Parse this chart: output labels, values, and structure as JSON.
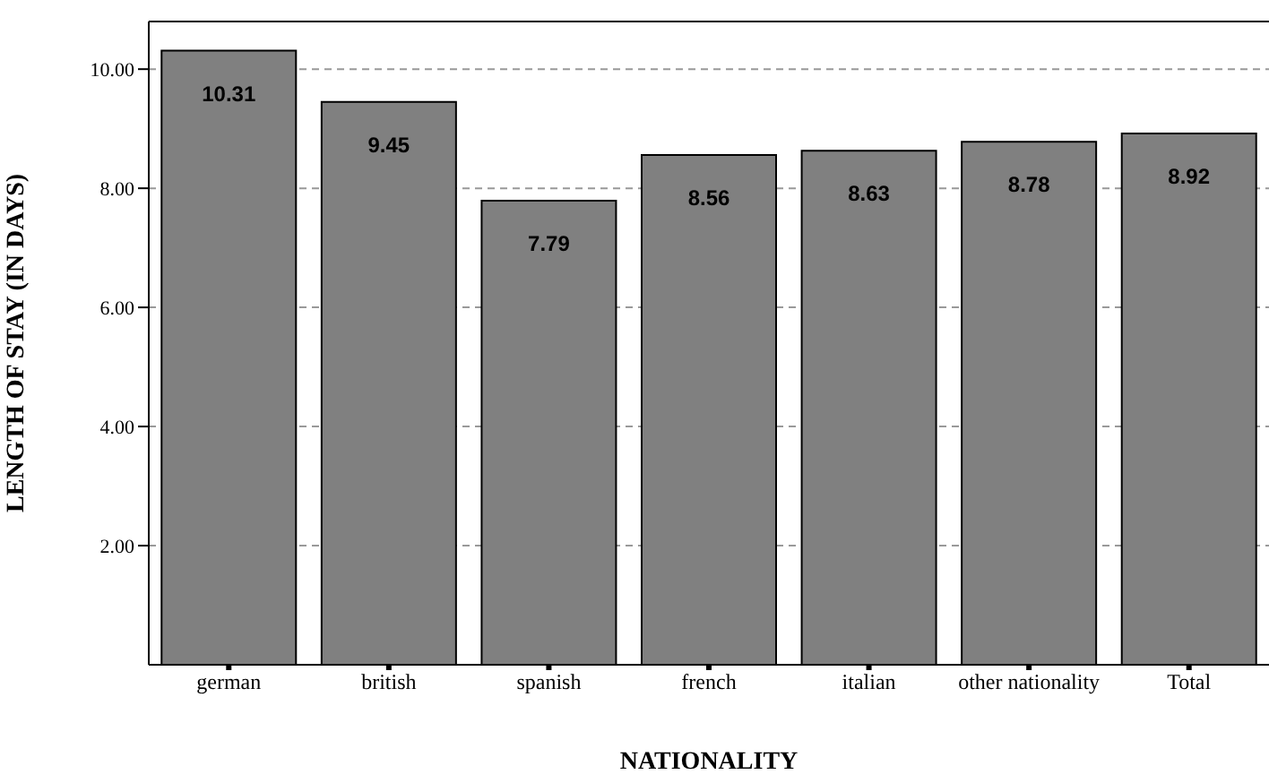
{
  "chart_data": {
    "type": "bar",
    "xlabel": "NATIONALITY",
    "ylabel": "LENGTH OF STAY (IN DAYS)",
    "categories": [
      "german",
      "british",
      "spanish",
      "french",
      "italian",
      "other nationality",
      "Total"
    ],
    "values": [
      10.31,
      9.45,
      7.79,
      8.56,
      8.63,
      8.78,
      8.92
    ],
    "color": "#808080",
    "ylim": [
      0,
      10.8
    ],
    "yticks": [
      {
        "value": 2,
        "label": "2.00"
      },
      {
        "value": 4,
        "label": "4.00"
      },
      {
        "value": 6,
        "label": "6.00"
      },
      {
        "value": 8,
        "label": "8.00"
      },
      {
        "value": 10,
        "label": "10.00"
      }
    ],
    "grid": "y",
    "data_labels": true
  }
}
